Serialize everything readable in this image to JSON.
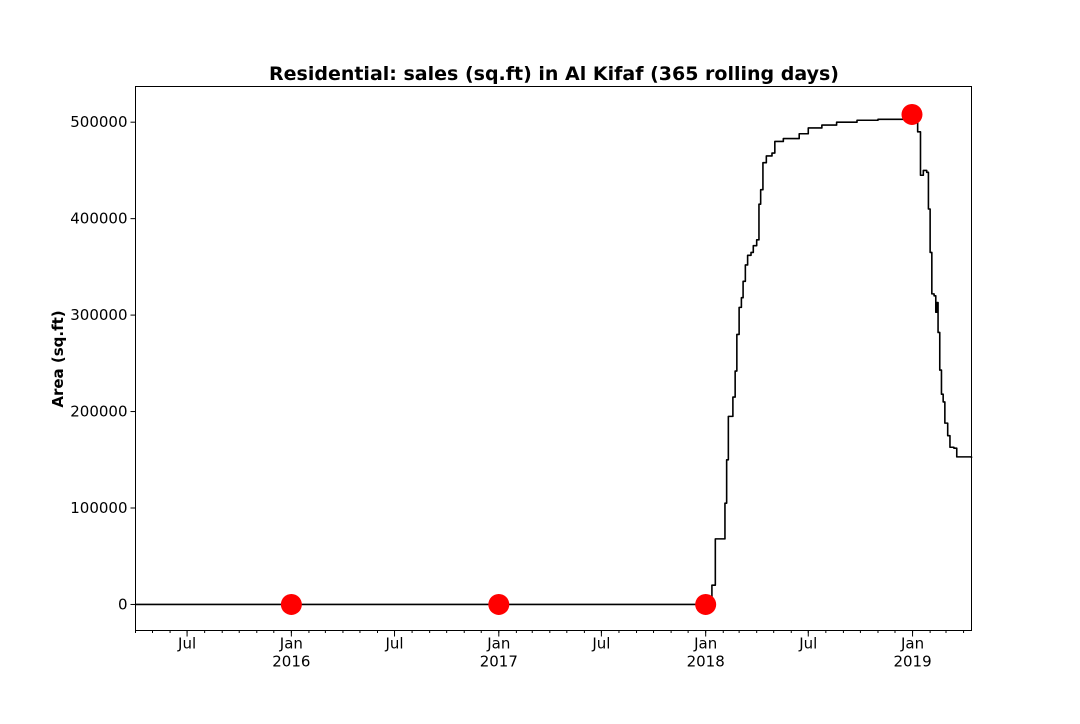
{
  "chart_data": {
    "type": "line",
    "title": "Residential: sales (sq.ft) in Al Kifaf (365 rolling days)",
    "xlabel": "",
    "ylabel": "Area (sq.ft)",
    "xlim": [
      "2015-04-01",
      "2019-04-15"
    ],
    "ylim": [
      -27000,
      537000
    ],
    "grid": false,
    "yticks": [
      0,
      100000,
      200000,
      300000,
      400000,
      500000
    ],
    "ytick_labels": [
      "0",
      "100000",
      "200000",
      "300000",
      "400000",
      "500000"
    ],
    "xticks": [
      {
        "date": "2015-07-01",
        "label": "Jul",
        "year": ""
      },
      {
        "date": "2016-01-01",
        "label": "Jan",
        "year": "2016"
      },
      {
        "date": "2016-07-01",
        "label": "Jul",
        "year": ""
      },
      {
        "date": "2017-01-01",
        "label": "Jan",
        "year": "2017"
      },
      {
        "date": "2017-07-01",
        "label": "Jul",
        "year": ""
      },
      {
        "date": "2018-01-01",
        "label": "Jan",
        "year": "2018"
      },
      {
        "date": "2018-07-01",
        "label": "Jul",
        "year": ""
      },
      {
        "date": "2019-01-01",
        "label": "Jan",
        "year": "2019"
      }
    ],
    "series": [
      {
        "color": "#000000",
        "points": [
          [
            "2015-04-01",
            0
          ],
          [
            "2018-01-08",
            0
          ],
          [
            "2018-01-12",
            20000
          ],
          [
            "2018-01-18",
            68000
          ],
          [
            "2018-02-01",
            68000
          ],
          [
            "2018-02-04",
            105000
          ],
          [
            "2018-02-07",
            150000
          ],
          [
            "2018-02-10",
            195000
          ],
          [
            "2018-02-18",
            215000
          ],
          [
            "2018-02-22",
            242000
          ],
          [
            "2018-02-25",
            280000
          ],
          [
            "2018-03-01",
            308000
          ],
          [
            "2018-03-05",
            318000
          ],
          [
            "2018-03-08",
            335000
          ],
          [
            "2018-03-12",
            352000
          ],
          [
            "2018-03-16",
            362000
          ],
          [
            "2018-03-22",
            365000
          ],
          [
            "2018-03-26",
            372000
          ],
          [
            "2018-04-01",
            378000
          ],
          [
            "2018-04-05",
            415000
          ],
          [
            "2018-04-08",
            430000
          ],
          [
            "2018-04-12",
            458000
          ],
          [
            "2018-04-18",
            465000
          ],
          [
            "2018-04-28",
            468000
          ],
          [
            "2018-05-03",
            480000
          ],
          [
            "2018-05-18",
            483000
          ],
          [
            "2018-06-15",
            488000
          ],
          [
            "2018-07-01",
            494000
          ],
          [
            "2018-07-25",
            497000
          ],
          [
            "2018-08-20",
            500000
          ],
          [
            "2018-09-25",
            502000
          ],
          [
            "2018-11-01",
            503000
          ],
          [
            "2018-12-20",
            504000
          ],
          [
            "2019-01-05",
            504000
          ],
          [
            "2019-01-10",
            490000
          ],
          [
            "2019-01-15",
            445000
          ],
          [
            "2019-01-20",
            450000
          ],
          [
            "2019-01-26",
            448000
          ],
          [
            "2019-01-29",
            410000
          ],
          [
            "2019-02-01",
            365000
          ],
          [
            "2019-02-04",
            322000
          ],
          [
            "2019-02-08",
            320000
          ],
          [
            "2019-02-11",
            303000
          ],
          [
            "2019-02-13",
            313000
          ],
          [
            "2019-02-15",
            282000
          ],
          [
            "2019-02-18",
            243000
          ],
          [
            "2019-02-21",
            218000
          ],
          [
            "2019-02-24",
            210000
          ],
          [
            "2019-02-27",
            188000
          ],
          [
            "2019-03-04",
            175000
          ],
          [
            "2019-03-08",
            163000
          ],
          [
            "2019-03-15",
            162000
          ],
          [
            "2019-03-20",
            153000
          ],
          [
            "2019-04-15",
            152000
          ]
        ]
      }
    ],
    "markers": {
      "color": "#ff0000",
      "points": [
        [
          "2016-01-01",
          0
        ],
        [
          "2017-01-01",
          0
        ],
        [
          "2018-01-01",
          0
        ],
        [
          "2018-12-31",
          508000
        ]
      ]
    }
  }
}
